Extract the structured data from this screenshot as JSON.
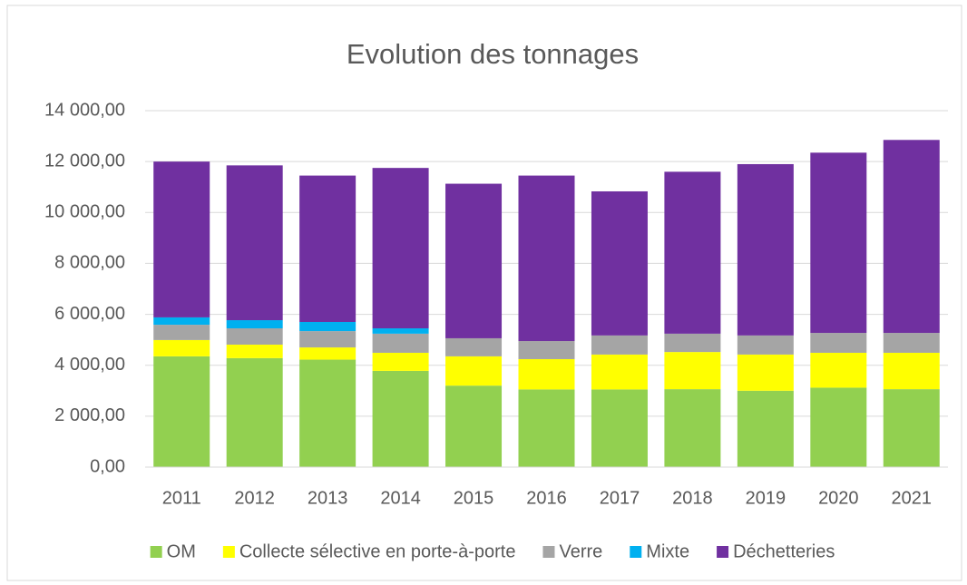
{
  "chart_data": {
    "type": "stacked_bar",
    "title": "Evolution des tonnages",
    "categories": [
      "2011",
      "2012",
      "2013",
      "2014",
      "2015",
      "2016",
      "2017",
      "2018",
      "2019",
      "2020",
      "2021"
    ],
    "series": [
      {
        "name": "OM",
        "color": "#92d050",
        "values": [
          4350,
          4280,
          4220,
          3780,
          3200,
          3050,
          3050,
          3060,
          3000,
          3120,
          3060
        ]
      },
      {
        "name": "Collecte sélective en porte-à-porte",
        "color": "#ffff00",
        "values": [
          640,
          530,
          480,
          710,
          1150,
          1190,
          1370,
          1460,
          1420,
          1370,
          1430
        ]
      },
      {
        "name": "Verre",
        "color": "#a5a5a5",
        "values": [
          600,
          640,
          640,
          750,
          710,
          710,
          750,
          720,
          750,
          780,
          780
        ]
      },
      {
        "name": "Mixte",
        "color": "#00b0f0",
        "values": [
          290,
          320,
          360,
          210,
          0,
          0,
          0,
          0,
          0,
          0,
          0
        ]
      },
      {
        "name": "Déchetteries",
        "color": "#7030a0",
        "values": [
          6120,
          6080,
          5750,
          6300,
          6070,
          6500,
          5660,
          6360,
          6730,
          7080,
          7580
        ]
      }
    ],
    "ylim": [
      0,
      14000
    ],
    "yticks": [
      {
        "value": 0,
        "label": "0,00"
      },
      {
        "value": 2000,
        "label": "2 000,00"
      },
      {
        "value": 4000,
        "label": "4 000,00"
      },
      {
        "value": 6000,
        "label": "6 000,00"
      },
      {
        "value": 8000,
        "label": "8 000,00"
      },
      {
        "value": 10000,
        "label": "10 000,00"
      },
      {
        "value": 12000,
        "label": "12 000,00"
      },
      {
        "value": 14000,
        "label": "14 000,00"
      }
    ],
    "grid": true,
    "legend": "bottom"
  }
}
